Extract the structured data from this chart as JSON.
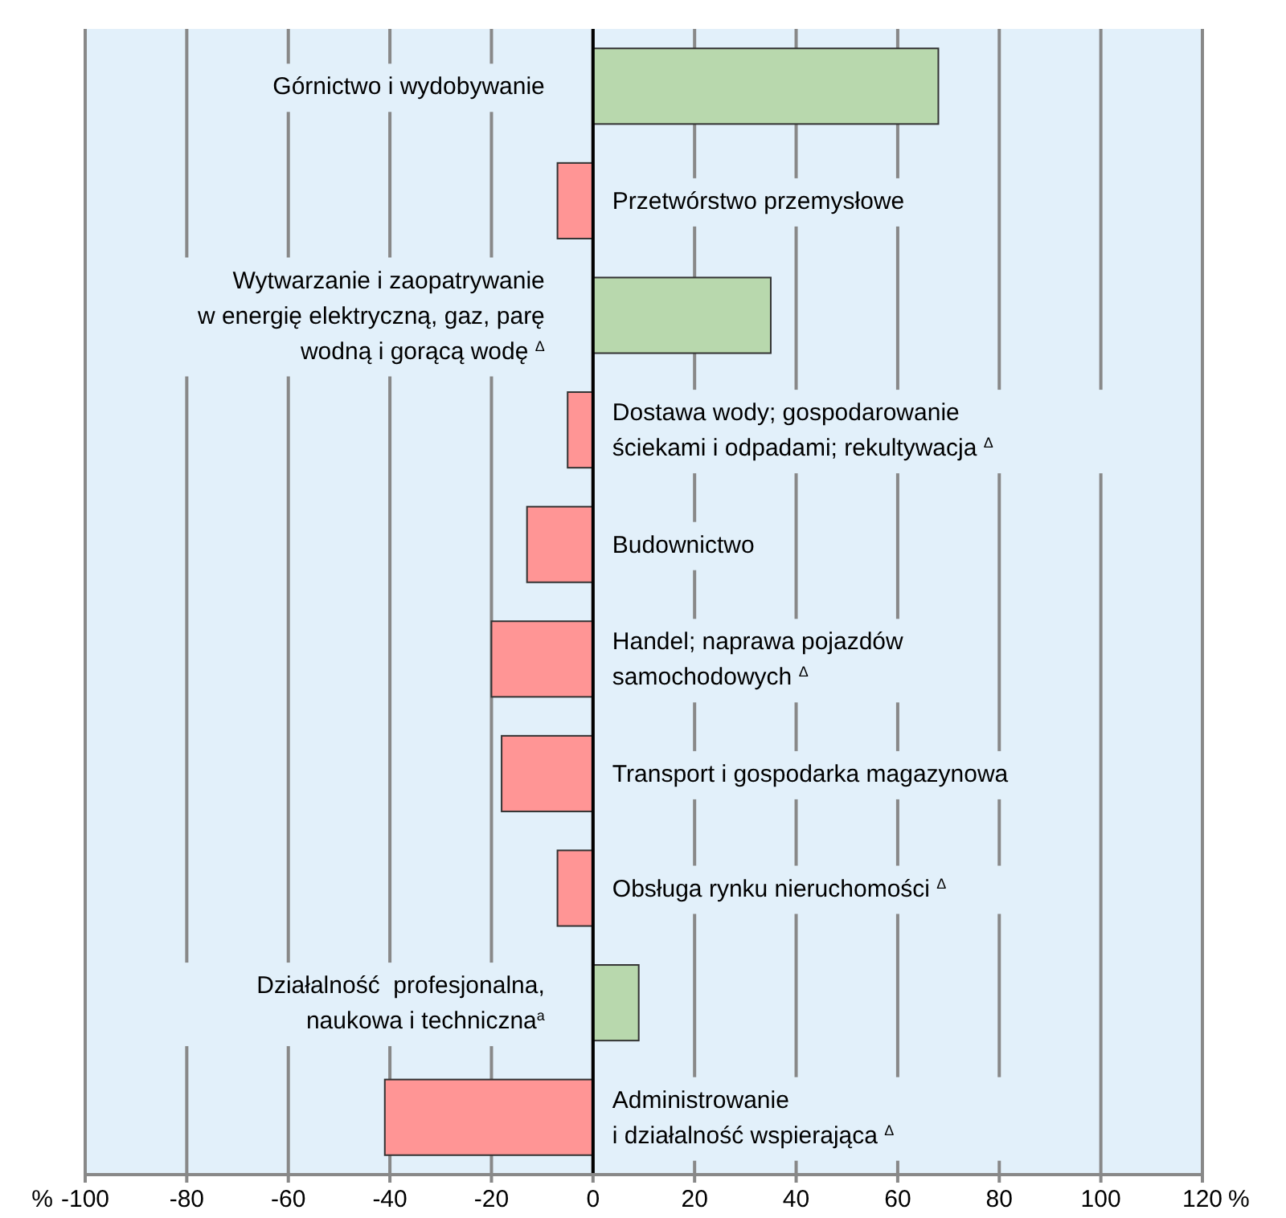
{
  "chart_data": {
    "type": "bar",
    "orientation": "horizontal",
    "categories": [
      "Górnictwo i wydobywanie",
      "Przetwórstwo przemysłowe",
      "Wytwarzanie i zaopatrywanie\nw energię elektryczną, gaz, parę\nwodną i gorącą wodę $^{Δ}$",
      "Dostawa wody; gospodarowanie\nściekami i odpadami; rekultywacja $^{Δ}$",
      "Budownictwo",
      "Handel; naprawa pojazdów\nsamochodowych $^{Δ}$",
      "Transport i gospodarka magazynowa",
      "Obsługa rynku nieruchomości $^{Δ}$",
      "Działalność  profesjonalna,\nnaukowa i techniczna$^{a}$",
      "Administrowanie\ni działalność wspierająca $^{Δ}$"
    ],
    "values": [
      68,
      -7,
      35,
      -5,
      -13,
      -20,
      -18,
      -7,
      9,
      -41
    ],
    "colors": [
      "#b8d8ad",
      "#ff9595",
      "#b8d8ad",
      "#ff9595",
      "#ff9595",
      "#ff9595",
      "#ff9595",
      "#ff9595",
      "#b8d8ad",
      "#ff9595"
    ],
    "xlabel": "%",
    "xlim": [
      -100,
      120
    ],
    "xticks": [
      -100,
      -80,
      -60,
      -40,
      -20,
      0,
      20,
      40,
      60,
      80,
      100,
      120
    ],
    "grid": "x"
  }
}
